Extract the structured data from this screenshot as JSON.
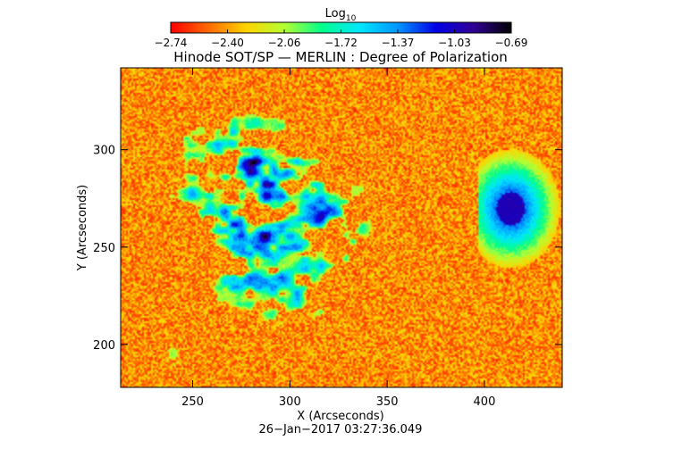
{
  "chart_data": {
    "type": "heatmap",
    "title": "Hinode SOT/SP — MERLIN : Degree of Polarization",
    "xlabel": "X (Arcseconds)",
    "ylabel": "Y (Arcseconds)",
    "xlim": [
      213,
      440
    ],
    "ylim": [
      178,
      342
    ],
    "x_ticks": [
      250,
      300,
      350,
      400
    ],
    "y_ticks": [
      200,
      250,
      300
    ],
    "timestamp": "26−Jan−2017 03:27:36.049",
    "colorbar": {
      "label_base": "Log",
      "label_sub": "10",
      "min": -2.74,
      "max": -0.69,
      "tick_labels": [
        "−2.74",
        "−2.40",
        "−2.06",
        "−1.72",
        "−1.37",
        "−1.03",
        "−0.69"
      ],
      "colors": [
        "#ff0000",
        "#ff6a00",
        "#ffd400",
        "#b4ff32",
        "#00ff8c",
        "#00e6ff",
        "#0096ff",
        "#0000e6",
        "#320096",
        "#000000"
      ]
    }
  }
}
